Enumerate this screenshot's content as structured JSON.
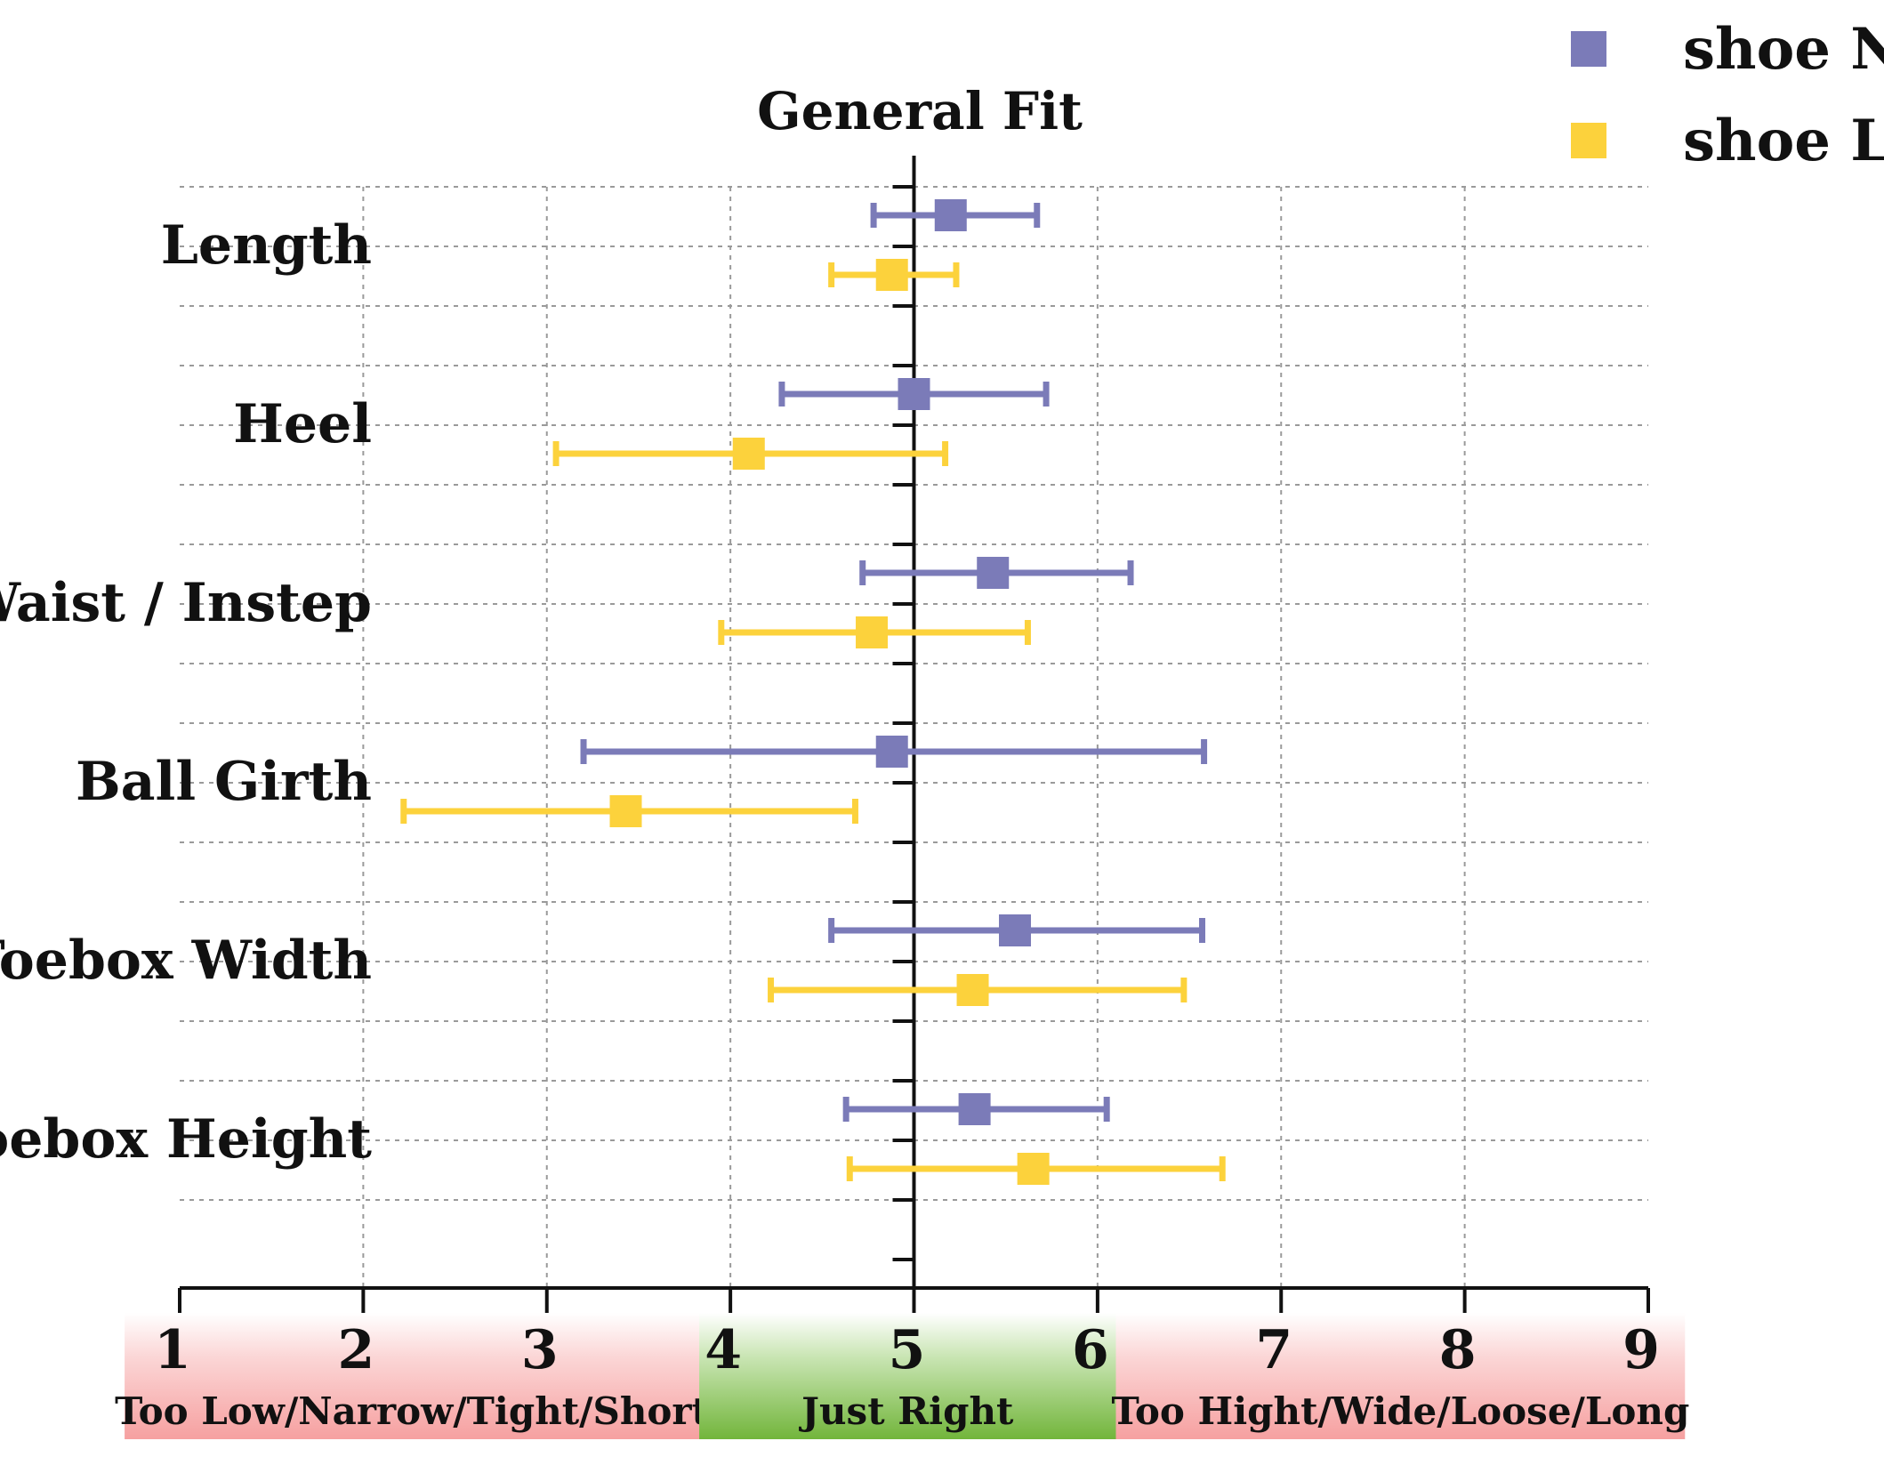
{
  "chart_data": {
    "type": "scatter",
    "title": "General Fit",
    "xlim": [
      1,
      9
    ],
    "x_ticks": [
      "1",
      "2",
      "3",
      "4",
      "5",
      "6",
      "7",
      "8",
      "9"
    ],
    "grid": true,
    "legend_position": "top-right",
    "categories": [
      "Length",
      "Heel",
      "Waist / Instep",
      "Ball Girth",
      "Toebox Width",
      "Toebox Height"
    ],
    "series": [
      {
        "name": "shoe N",
        "color": "#7b7bb8",
        "values": [
          5.2,
          5.0,
          5.43,
          4.88,
          5.55,
          5.33
        ],
        "error_low": [
          4.78,
          4.28,
          4.72,
          3.2,
          4.55,
          4.63
        ],
        "error_high": [
          5.67,
          5.72,
          6.18,
          6.58,
          6.57,
          6.05
        ]
      },
      {
        "name": "shoe L",
        "color": "#fcd23c",
        "values": [
          4.88,
          4.1,
          4.77,
          3.43,
          5.32,
          5.65
        ],
        "error_low": [
          4.55,
          3.05,
          3.95,
          2.22,
          4.22,
          4.65
        ],
        "error_high": [
          5.23,
          5.17,
          5.62,
          4.68,
          6.47,
          6.68
        ]
      }
    ],
    "zones": [
      {
        "label": "Too Low/Narrow/Tight/Short",
        "from": 0.7,
        "to": 3.83,
        "color": "#f6a3a3"
      },
      {
        "label": "Just Right",
        "from": 3.83,
        "to": 6.1,
        "color": "#7cba45"
      },
      {
        "label": "Too Hight/Wide/Loose/Long",
        "from": 6.1,
        "to": 9.2,
        "color": "#f6a3a3"
      }
    ]
  }
}
